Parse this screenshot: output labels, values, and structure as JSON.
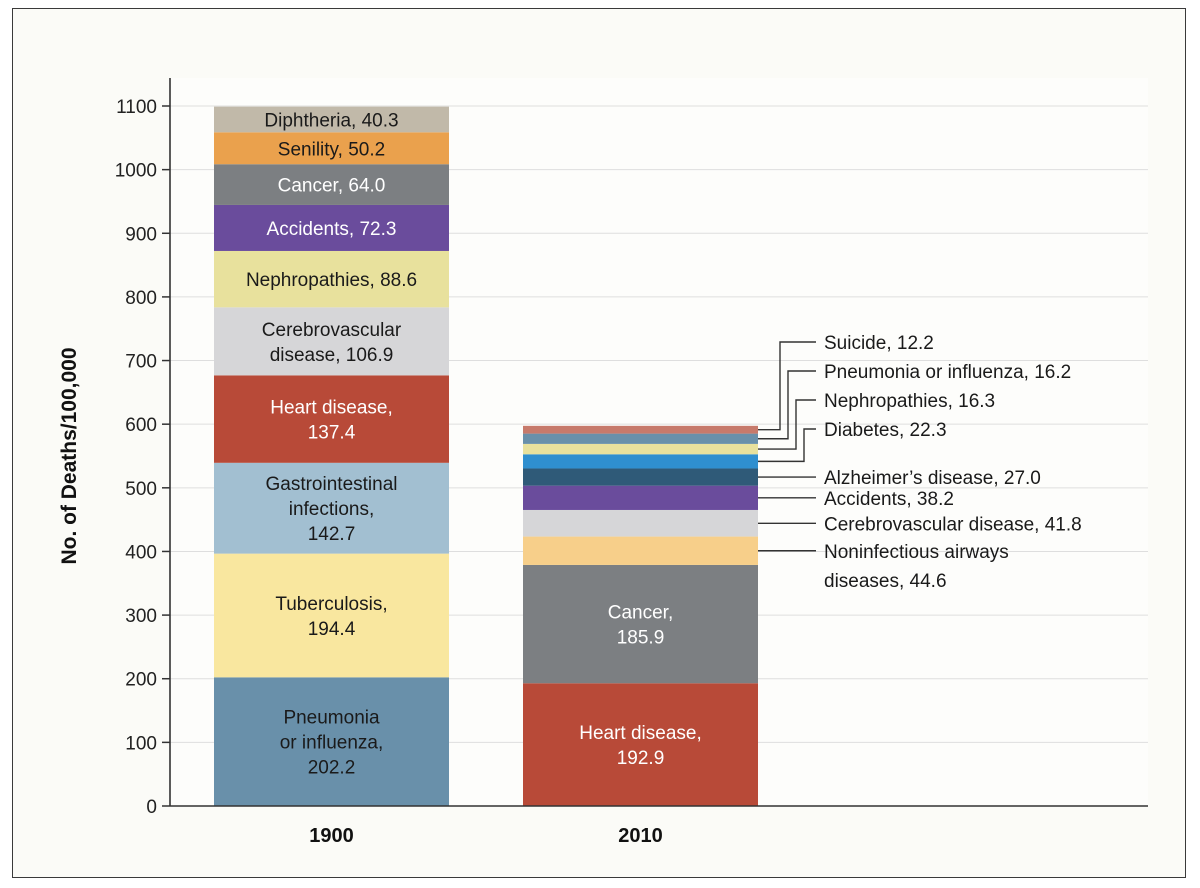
{
  "chart_data": {
    "type": "bar",
    "stacked": true,
    "title": "",
    "xlabel": "",
    "ylabel": "No. of Deaths/100,000",
    "ylim": [
      0,
      1100
    ],
    "yticks": [
      0,
      100,
      200,
      300,
      400,
      500,
      600,
      700,
      800,
      900,
      1000,
      1100
    ],
    "grid": true,
    "categories": [
      "1900",
      "2010"
    ],
    "stacks": [
      {
        "category": "1900",
        "segments": [
          {
            "name": "Pneumonia or influenza",
            "value": 202.2,
            "label_lines": [
              "Pneumonia",
              "or influenza,",
              "202.2"
            ],
            "color": "#6990aa",
            "text_color": "#1a1a1a"
          },
          {
            "name": "Tuberculosis",
            "value": 194.4,
            "label_lines": [
              "Tuberculosis,",
              "194.4"
            ],
            "color": "#f9e79f",
            "text_color": "#1a1a1a"
          },
          {
            "name": "Gastrointestinal infections",
            "value": 142.7,
            "label_lines": [
              "Gastrointestinal",
              "infections,",
              "142.7"
            ],
            "color": "#a2bfd1",
            "text_color": "#1a1a1a"
          },
          {
            "name": "Heart disease",
            "value": 137.4,
            "label_lines": [
              "Heart disease,",
              "137.4"
            ],
            "color": "#b84a38",
            "text_color": "#ffffff"
          },
          {
            "name": "Cerebrovascular disease",
            "value": 106.9,
            "label_lines": [
              "Cerebrovascular",
              "disease, 106.9"
            ],
            "color": "#d6d6d8",
            "text_color": "#1a1a1a"
          },
          {
            "name": "Nephropathies",
            "value": 88.6,
            "label_lines": [
              "Nephropathies, 88.6"
            ],
            "color": "#e8e19d",
            "text_color": "#1a1a1a"
          },
          {
            "name": "Accidents",
            "value": 72.3,
            "label_lines": [
              "Accidents, 72.3"
            ],
            "color": "#6a4c9c",
            "text_color": "#ffffff"
          },
          {
            "name": "Cancer",
            "value": 64.0,
            "label_lines": [
              "Cancer, 64.0"
            ],
            "color": "#7c7f82",
            "text_color": "#ffffff"
          },
          {
            "name": "Senility",
            "value": 50.2,
            "label_lines": [
              "Senility, 50.2"
            ],
            "color": "#eaa14d",
            "text_color": "#1a1a1a"
          },
          {
            "name": "Diphtheria",
            "value": 40.3,
            "label_lines": [
              "Diphtheria, 40.3"
            ],
            "color": "#c1b9a9",
            "text_color": "#1a1a1a"
          }
        ]
      },
      {
        "category": "2010",
        "segments": [
          {
            "name": "Heart disease",
            "value": 192.9,
            "label_lines": [
              "Heart disease,",
              "192.9"
            ],
            "color": "#b84a38",
            "text_color": "#ffffff"
          },
          {
            "name": "Cancer",
            "value": 185.9,
            "label_lines": [
              "Cancer,",
              "185.9"
            ],
            "color": "#7c7f82",
            "text_color": "#ffffff"
          },
          {
            "name": "Noninfectious airways diseases",
            "value": 44.6,
            "callout_lines": [
              "Noninfectious airways",
              "diseases, 44.6"
            ],
            "color": "#f7cf8a"
          },
          {
            "name": "Cerebrovascular disease",
            "value": 41.8,
            "callout_lines": [
              "Cerebrovascular disease, 41.8"
            ],
            "color": "#d6d6d8"
          },
          {
            "name": "Accidents",
            "value": 38.2,
            "callout_lines": [
              "Accidents, 38.2"
            ],
            "color": "#6a4c9c"
          },
          {
            "name": "Alzheimer's disease",
            "value": 27.0,
            "callout_lines": [
              "Alzheimer’s disease, 27.0"
            ],
            "color": "#2f5a78"
          },
          {
            "name": "Diabetes",
            "value": 22.3,
            "callout_lines": [
              "Diabetes, 22.3"
            ],
            "color": "#2f8fcf"
          },
          {
            "name": "Nephropathies",
            "value": 16.3,
            "callout_lines": [
              "Nephropathies, 16.3"
            ],
            "color": "#e8e19d"
          },
          {
            "name": "Pneumonia or influenza",
            "value": 16.2,
            "callout_lines": [
              "Pneumonia or influenza, 16.2"
            ],
            "color": "#6990aa"
          },
          {
            "name": "Suicide",
            "value": 12.2,
            "callout_lines": [
              "Suicide, 12.2"
            ],
            "color": "#c77a6b"
          }
        ]
      }
    ]
  }
}
